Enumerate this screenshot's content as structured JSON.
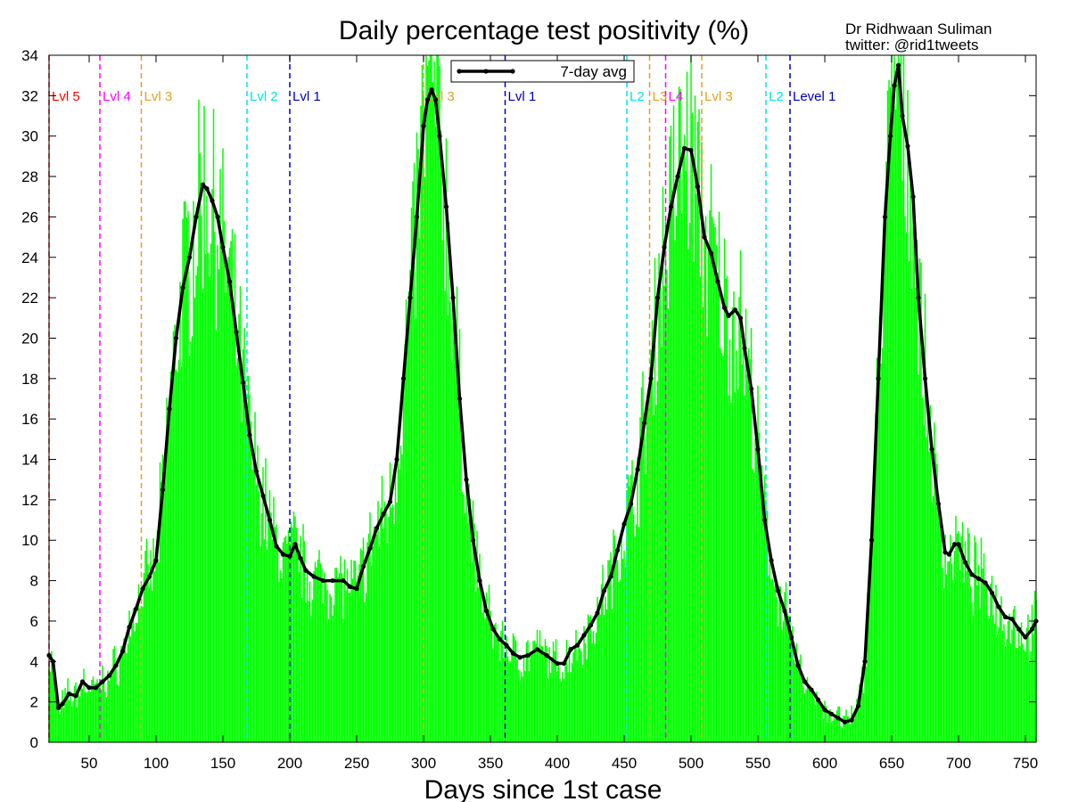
{
  "chart_data": {
    "type": "bar",
    "title": "Daily percentage test positivity (%)",
    "credit_line1": "Dr Ridhwaan Suliman",
    "credit_line2": "twitter: @rid1tweets",
    "xlabel": "Days since 1st case",
    "ylabel": "",
    "xlim": [
      20,
      758
    ],
    "ylim": [
      0,
      34
    ],
    "x_ticks": [
      50,
      100,
      150,
      200,
      250,
      300,
      350,
      400,
      450,
      500,
      550,
      600,
      650,
      700,
      750
    ],
    "y_ticks": [
      0,
      2,
      4,
      6,
      8,
      10,
      12,
      14,
      16,
      18,
      20,
      22,
      24,
      26,
      28,
      30,
      32,
      34
    ],
    "bar_color": "#00ff00",
    "line_color": "#000000",
    "series": [
      {
        "name": "7-day avg",
        "type": "line",
        "points": [
          [
            20,
            4.3
          ],
          [
            23,
            4.0
          ],
          [
            27,
            1.7
          ],
          [
            30,
            1.9
          ],
          [
            35,
            2.4
          ],
          [
            40,
            2.3
          ],
          [
            45,
            3.0
          ],
          [
            50,
            2.7
          ],
          [
            55,
            2.7
          ],
          [
            60,
            3.0
          ],
          [
            65,
            3.3
          ],
          [
            70,
            3.8
          ],
          [
            75,
            4.5
          ],
          [
            80,
            5.7
          ],
          [
            85,
            6.6
          ],
          [
            90,
            7.6
          ],
          [
            95,
            8.2
          ],
          [
            100,
            9.0
          ],
          [
            105,
            12.5
          ],
          [
            110,
            16.5
          ],
          [
            115,
            20.0
          ],
          [
            120,
            22.5
          ],
          [
            125,
            24.0
          ],
          [
            130,
            26.0
          ],
          [
            135,
            27.6
          ],
          [
            138,
            27.4
          ],
          [
            142,
            26.8
          ],
          [
            146,
            26.0
          ],
          [
            150,
            24.5
          ],
          [
            155,
            22.8
          ],
          [
            160,
            20.3
          ],
          [
            165,
            17.8
          ],
          [
            170,
            15.2
          ],
          [
            175,
            13.4
          ],
          [
            180,
            12.2
          ],
          [
            185,
            11.0
          ],
          [
            190,
            9.7
          ],
          [
            195,
            9.3
          ],
          [
            200,
            9.2
          ],
          [
            204,
            9.8
          ],
          [
            208,
            9.1
          ],
          [
            212,
            8.5
          ],
          [
            218,
            8.2
          ],
          [
            225,
            8.0
          ],
          [
            232,
            8.0
          ],
          [
            240,
            8.0
          ],
          [
            245,
            7.7
          ],
          [
            250,
            7.6
          ],
          [
            255,
            8.7
          ],
          [
            260,
            9.6
          ],
          [
            265,
            10.6
          ],
          [
            270,
            11.3
          ],
          [
            275,
            11.9
          ],
          [
            280,
            14.0
          ],
          [
            285,
            18.0
          ],
          [
            290,
            22.0
          ],
          [
            295,
            26.0
          ],
          [
            300,
            30.5
          ],
          [
            303,
            31.8
          ],
          [
            306,
            32.3
          ],
          [
            309,
            31.8
          ],
          [
            312,
            30.0
          ],
          [
            317,
            26.5
          ],
          [
            322,
            22.0
          ],
          [
            327,
            17.0
          ],
          [
            332,
            13.0
          ],
          [
            337,
            10.0
          ],
          [
            342,
            8.0
          ],
          [
            347,
            6.5
          ],
          [
            352,
            5.6
          ],
          [
            357,
            5.1
          ],
          [
            362,
            4.8
          ],
          [
            367,
            4.4
          ],
          [
            372,
            4.2
          ],
          [
            378,
            4.3
          ],
          [
            385,
            4.6
          ],
          [
            392,
            4.3
          ],
          [
            400,
            3.9
          ],
          [
            405,
            3.9
          ],
          [
            410,
            4.6
          ],
          [
            415,
            4.8
          ],
          [
            420,
            5.3
          ],
          [
            425,
            5.8
          ],
          [
            430,
            6.4
          ],
          [
            435,
            7.5
          ],
          [
            440,
            8.2
          ],
          [
            445,
            9.5
          ],
          [
            450,
            10.8
          ],
          [
            455,
            11.8
          ],
          [
            460,
            13.5
          ],
          [
            465,
            15.8
          ],
          [
            470,
            18.0
          ],
          [
            475,
            22.0
          ],
          [
            480,
            24.5
          ],
          [
            485,
            26.5
          ],
          [
            490,
            28.0
          ],
          [
            495,
            29.4
          ],
          [
            500,
            29.3
          ],
          [
            505,
            27.5
          ],
          [
            510,
            25.0
          ],
          [
            515,
            24.2
          ],
          [
            520,
            22.8
          ],
          [
            525,
            21.5
          ],
          [
            528,
            21.1
          ],
          [
            533,
            21.4
          ],
          [
            537,
            21.0
          ],
          [
            540,
            19.5
          ],
          [
            545,
            17.5
          ],
          [
            550,
            14.5
          ],
          [
            555,
            11.0
          ],
          [
            560,
            9.0
          ],
          [
            565,
            7.5
          ],
          [
            570,
            6.5
          ],
          [
            575,
            5.2
          ],
          [
            580,
            3.8
          ],
          [
            585,
            3.0
          ],
          [
            590,
            2.6
          ],
          [
            595,
            2.1
          ],
          [
            600,
            1.6
          ],
          [
            605,
            1.4
          ],
          [
            610,
            1.2
          ],
          [
            615,
            1.0
          ],
          [
            620,
            1.1
          ],
          [
            625,
            1.8
          ],
          [
            630,
            4.0
          ],
          [
            635,
            10.0
          ],
          [
            640,
            18.0
          ],
          [
            645,
            26.0
          ],
          [
            649,
            30.0
          ],
          [
            652,
            32.5
          ],
          [
            655,
            33.5
          ],
          [
            658,
            31.0
          ],
          [
            662,
            29.5
          ],
          [
            666,
            27.0
          ],
          [
            670,
            22.0
          ],
          [
            675,
            18.0
          ],
          [
            680,
            14.5
          ],
          [
            685,
            11.8
          ],
          [
            690,
            9.4
          ],
          [
            693,
            9.3
          ],
          [
            697,
            9.8
          ],
          [
            700,
            9.8
          ],
          [
            705,
            8.9
          ],
          [
            710,
            8.3
          ],
          [
            715,
            8.1
          ],
          [
            720,
            7.9
          ],
          [
            725,
            7.4
          ],
          [
            730,
            6.7
          ],
          [
            735,
            6.2
          ],
          [
            740,
            6.1
          ],
          [
            745,
            5.6
          ],
          [
            750,
            5.2
          ],
          [
            755,
            5.6
          ],
          [
            758,
            6.0
          ]
        ]
      }
    ],
    "events": [
      {
        "day": 20,
        "label": "Lvl 5",
        "color": "#ff0000"
      },
      {
        "day": 58,
        "label": "Lvl 4",
        "color": "#ff00ff"
      },
      {
        "day": 89,
        "label": "Lvl 3",
        "color": "#e5a020"
      },
      {
        "day": 168,
        "label": "Lvl 2",
        "color": "#00e5e5"
      },
      {
        "day": 200,
        "label": "Lvl 1",
        "color": "#0000c0"
      },
      {
        "day": 300,
        "label": "Lvl 3",
        "color": "#e5a020"
      },
      {
        "day": 361,
        "label": "Lvl 1",
        "color": "#0000c0"
      },
      {
        "day": 452,
        "label": "L2",
        "color": "#00e5e5"
      },
      {
        "day": 469,
        "label": "L3",
        "color": "#e5a020"
      },
      {
        "day": 481,
        "label": "L4",
        "color": "#ff00ff"
      },
      {
        "day": 508,
        "label": "Lvl 3",
        "color": "#e5a020"
      },
      {
        "day": 556,
        "label": "L2",
        "color": "#00e5e5"
      },
      {
        "day": 574,
        "label": "Level 1",
        "color": "#0000c0"
      }
    ],
    "legend": {
      "placement": "top-center",
      "entries": [
        "7-day avg"
      ]
    }
  }
}
